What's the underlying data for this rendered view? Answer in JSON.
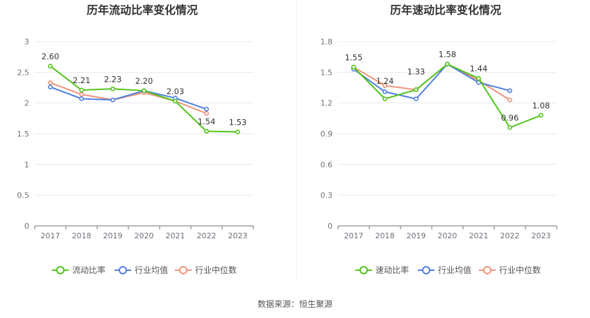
{
  "source": "数据来源：恒生聚源",
  "colors": {
    "main": "#52c41a",
    "avg": "#4f7fe0",
    "median": "#f0937a",
    "grid": "#e6e9f0",
    "axis": "#6e7079"
  },
  "chart_data": [
    {
      "type": "line",
      "title": "历年流动比率变化情况",
      "categories": [
        "2017",
        "2018",
        "2019",
        "2020",
        "2021",
        "2022",
        "2023"
      ],
      "ylim": [
        0,
        3
      ],
      "yticks": [
        "0",
        "0.5",
        "1",
        "1.5",
        "2",
        "2.5",
        "3"
      ],
      "grid": true,
      "legend_position": "bottom",
      "series": [
        {
          "name": "流动比率",
          "values": [
            2.6,
            2.21,
            2.23,
            2.2,
            2.03,
            1.54,
            1.53
          ],
          "labels": [
            "2.60",
            "2.21",
            "2.23",
            "2.20",
            "2.03",
            "1.54",
            "1.53"
          ]
        },
        {
          "name": "行业均值",
          "values": [
            2.26,
            2.07,
            2.05,
            2.2,
            2.08,
            1.9,
            null
          ]
        },
        {
          "name": "行业中位数",
          "values": [
            2.33,
            2.14,
            2.05,
            2.17,
            2.03,
            1.83,
            null
          ]
        }
      ]
    },
    {
      "type": "line",
      "title": "历年速动比率变化情况",
      "categories": [
        "2017",
        "2018",
        "2019",
        "2020",
        "2021",
        "2022",
        "2023"
      ],
      "ylim": [
        0,
        1.8
      ],
      "yticks": [
        "0",
        "0.3",
        "0.6",
        "0.9",
        "1.2",
        "1.5",
        "1.8"
      ],
      "grid": true,
      "legend_position": "bottom",
      "series": [
        {
          "name": "速动比率",
          "values": [
            1.55,
            1.24,
            1.33,
            1.58,
            1.44,
            0.96,
            1.08
          ],
          "labels": [
            "1.55",
            "1.24",
            "1.33",
            "1.58",
            "1.44",
            "0.96",
            "1.08"
          ]
        },
        {
          "name": "行业均值",
          "values": [
            1.53,
            1.31,
            1.24,
            1.58,
            1.4,
            1.32,
            null
          ]
        },
        {
          "name": "行业中位数",
          "values": [
            1.55,
            1.37,
            1.33,
            1.58,
            1.42,
            1.23,
            null
          ]
        }
      ]
    }
  ]
}
